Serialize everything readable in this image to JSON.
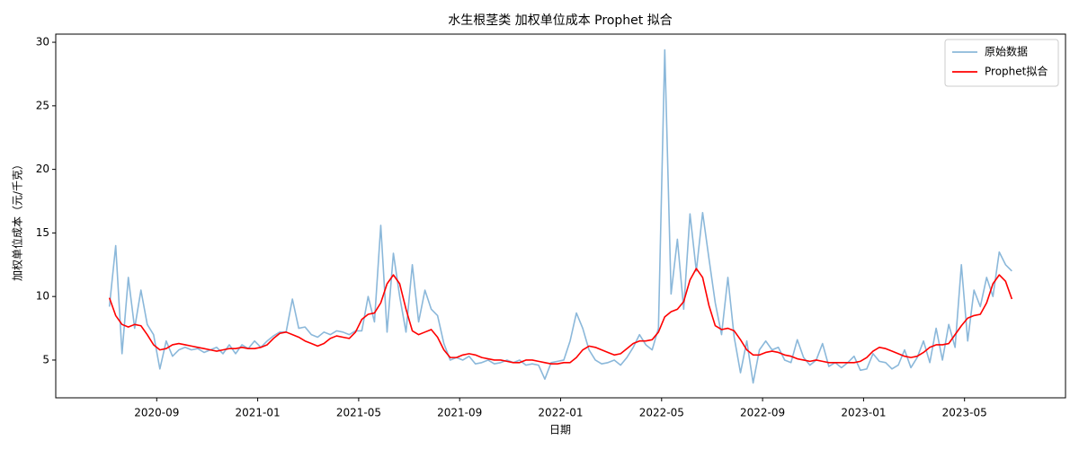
{
  "chart_data": {
    "type": "line",
    "title": "水生根茎类 加权单位成本 Prophet 拟合",
    "xlabel": "日期",
    "ylabel": "加权单位成本（元/千克）",
    "x": [
      "2020-07",
      "2020-07",
      "2020-07",
      "2020-07",
      "2020-08",
      "2020-08",
      "2020-08",
      "2020-08",
      "2020-09",
      "2020-09",
      "2020-09",
      "2020-09",
      "2020-10",
      "2020-10",
      "2020-10",
      "2020-10",
      "2020-11",
      "2020-11",
      "2020-11",
      "2020-11",
      "2020-12",
      "2020-12",
      "2020-12",
      "2020-12",
      "2021-01",
      "2021-01",
      "2021-01",
      "2021-01",
      "2021-02",
      "2021-02",
      "2021-02",
      "2021-02",
      "2021-03",
      "2021-03",
      "2021-03",
      "2021-03",
      "2021-04",
      "2021-04",
      "2021-04",
      "2021-04",
      "2021-05",
      "2021-05",
      "2021-05",
      "2021-05",
      "2021-06",
      "2021-06",
      "2021-06",
      "2021-06",
      "2021-07",
      "2021-07",
      "2021-07",
      "2021-07",
      "2021-08",
      "2021-08",
      "2021-08",
      "2021-08",
      "2021-09",
      "2021-09",
      "2021-09",
      "2021-09",
      "2021-10",
      "2021-10",
      "2021-10",
      "2021-10",
      "2021-11",
      "2021-11",
      "2021-11",
      "2021-11",
      "2021-12",
      "2021-12",
      "2021-12",
      "2021-12",
      "2022-01",
      "2022-01",
      "2022-01",
      "2022-01",
      "2022-02",
      "2022-02",
      "2022-02",
      "2022-02",
      "2022-03",
      "2022-03",
      "2022-03",
      "2022-03",
      "2022-04",
      "2022-04",
      "2022-04",
      "2022-04",
      "2022-05",
      "2022-05",
      "2022-05",
      "2022-05",
      "2022-06",
      "2022-06",
      "2022-06",
      "2022-06",
      "2022-07",
      "2022-07",
      "2022-07",
      "2022-07",
      "2022-08",
      "2022-08",
      "2022-08",
      "2022-08",
      "2022-09",
      "2022-09",
      "2022-09",
      "2022-09",
      "2022-10",
      "2022-10",
      "2022-10",
      "2022-10",
      "2022-11",
      "2022-11",
      "2022-11",
      "2022-11",
      "2022-12",
      "2022-12",
      "2022-12",
      "2022-12",
      "2023-01",
      "2023-01",
      "2023-01",
      "2023-01",
      "2023-02",
      "2023-02",
      "2023-02",
      "2023-02",
      "2023-03",
      "2023-03",
      "2023-03",
      "2023-03",
      "2023-04",
      "2023-04",
      "2023-04",
      "2023-04",
      "2023-05",
      "2023-05",
      "2023-05",
      "2023-05",
      "2023-06",
      "2023-06",
      "2023-06",
      "2023-06"
    ],
    "series": [
      {
        "name": "原始数据",
        "color": "#8bb8da",
        "values": [
          9.2,
          14.0,
          5.5,
          11.5,
          7.5,
          10.5,
          7.8,
          7.0,
          4.3,
          6.5,
          5.3,
          5.8,
          6.0,
          5.8,
          5.9,
          5.6,
          5.8,
          6.0,
          5.5,
          6.2,
          5.5,
          6.2,
          5.9,
          6.5,
          6.0,
          6.5,
          6.9,
          7.2,
          7.2,
          9.8,
          7.5,
          7.6,
          7.0,
          6.8,
          7.2,
          7.0,
          7.3,
          7.2,
          7.0,
          7.3,
          7.3,
          10.0,
          8.0,
          15.6,
          7.2,
          13.4,
          10.0,
          7.2,
          12.5,
          8.0,
          10.5,
          9.0,
          8.5,
          6.3,
          5.0,
          5.2,
          5.0,
          5.3,
          4.7,
          4.8,
          5.0,
          4.7,
          4.8,
          5.0,
          4.8,
          5.0,
          4.6,
          4.7,
          4.6,
          3.5,
          4.8,
          4.9,
          5.0,
          6.5,
          8.7,
          7.5,
          5.8,
          5.0,
          4.7,
          4.8,
          5.0,
          4.6,
          5.2,
          6.0,
          7.0,
          6.2,
          5.8,
          7.5,
          29.4,
          10.2,
          14.5,
          9.0,
          16.5,
          12.0,
          16.6,
          13.0,
          9.5,
          7.0,
          11.5,
          6.8,
          4.0,
          6.5,
          3.2,
          5.8,
          6.5,
          5.8,
          6.0,
          5.0,
          4.8,
          6.6,
          5.2,
          4.6,
          5.0,
          6.3,
          4.5,
          4.8,
          4.4,
          4.8,
          5.3,
          4.2,
          4.3,
          5.5,
          4.9,
          4.8,
          4.3,
          4.6,
          5.8,
          4.4,
          5.2,
          6.5,
          4.8,
          7.5,
          5.0,
          7.8,
          6.0,
          12.5,
          6.5,
          10.5,
          9.2,
          11.5,
          10.0,
          13.5,
          12.5,
          12.0
        ]
      },
      {
        "name": "Prophet拟合",
        "color": "#ff0000",
        "values": [
          9.9,
          8.5,
          7.8,
          7.6,
          7.8,
          7.7,
          7.0,
          6.2,
          5.8,
          5.9,
          6.2,
          6.3,
          6.2,
          6.1,
          6.0,
          5.9,
          5.8,
          5.7,
          5.8,
          5.9,
          5.9,
          6.0,
          5.9,
          5.9,
          6.0,
          6.2,
          6.7,
          7.1,
          7.2,
          7.0,
          6.8,
          6.5,
          6.3,
          6.1,
          6.3,
          6.7,
          6.9,
          6.8,
          6.7,
          7.2,
          8.2,
          8.6,
          8.7,
          9.5,
          11.0,
          11.7,
          11.0,
          9.0,
          7.3,
          7.0,
          7.2,
          7.4,
          6.8,
          5.8,
          5.2,
          5.2,
          5.4,
          5.5,
          5.4,
          5.2,
          5.1,
          5.0,
          5.0,
          4.9,
          4.8,
          4.8,
          5.0,
          5.0,
          4.9,
          4.8,
          4.7,
          4.7,
          4.8,
          4.8,
          5.2,
          5.8,
          6.1,
          6.0,
          5.8,
          5.6,
          5.4,
          5.5,
          5.9,
          6.3,
          6.5,
          6.5,
          6.6,
          7.2,
          8.4,
          8.8,
          9.0,
          9.6,
          11.3,
          12.2,
          11.5,
          9.3,
          7.7,
          7.4,
          7.5,
          7.3,
          6.6,
          5.8,
          5.4,
          5.4,
          5.6,
          5.7,
          5.6,
          5.4,
          5.3,
          5.1,
          5.0,
          4.9,
          5.0,
          4.9,
          4.8,
          4.8,
          4.8,
          4.8,
          4.8,
          4.9,
          5.2,
          5.7,
          6.0,
          5.9,
          5.7,
          5.5,
          5.3,
          5.2,
          5.3,
          5.6,
          6.0,
          6.2,
          6.2,
          6.3,
          7.0,
          7.7,
          8.3,
          8.5,
          8.6,
          9.5,
          11.0,
          11.7,
          11.2,
          9.8
        ]
      }
    ],
    "xlim": [
      "2020-05",
      "2023-08"
    ],
    "xticks": [
      "2020-09",
      "2021-01",
      "2021-05",
      "2021-09",
      "2022-01",
      "2022-05",
      "2022-09",
      "2023-01",
      "2023-05"
    ],
    "ylim": [
      2.03,
      30.64
    ],
    "yticks": [
      5,
      10,
      15,
      20,
      25,
      30
    ],
    "legend": "upper right"
  }
}
